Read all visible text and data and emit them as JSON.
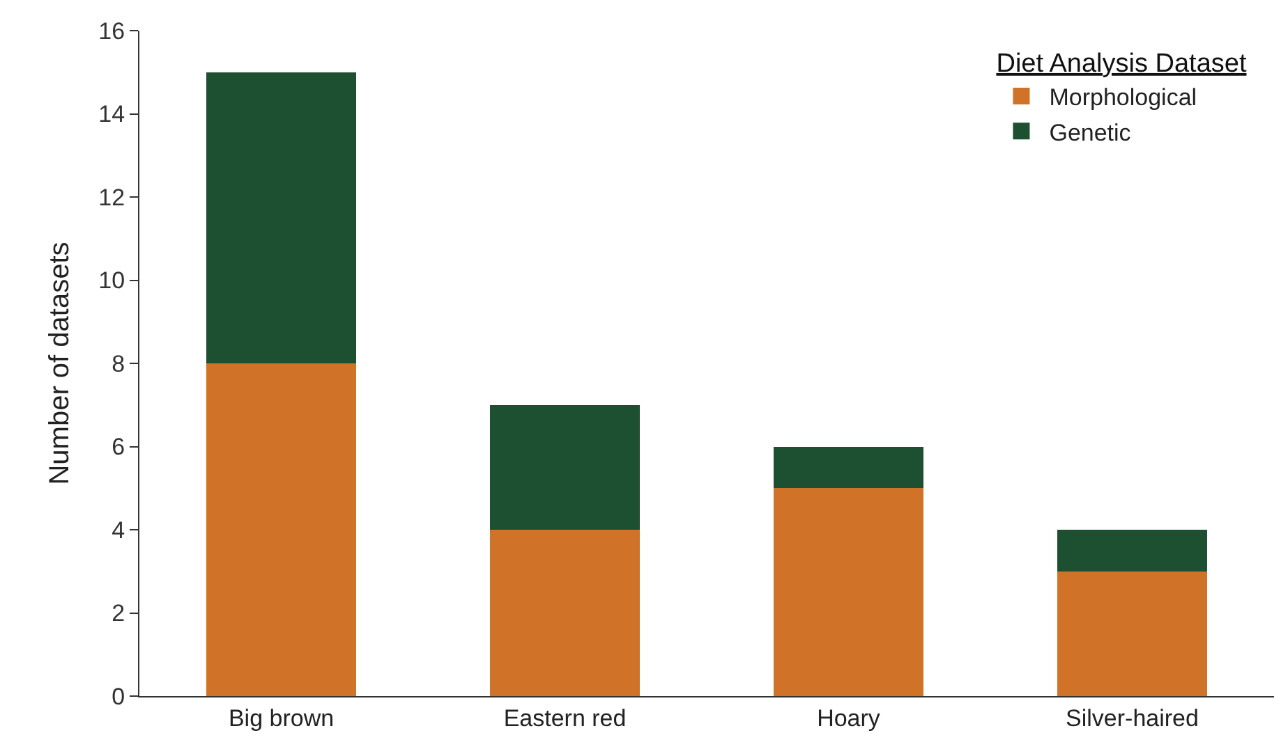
{
  "chart_data": {
    "type": "bar",
    "stacked": true,
    "ylabel": "Number of datasets",
    "legend_title": "Diet Analysis Dataset",
    "legend": "top right",
    "categories": [
      "Big brown",
      "Eastern red",
      "Hoary",
      "Silver-haired"
    ],
    "series": [
      {
        "name": "Morphological",
        "color": "#d07328",
        "values": [
          8,
          4,
          5,
          3
        ]
      },
      {
        "name": "Genetic",
        "color": "#1d4f31",
        "values": [
          7,
          3,
          1,
          1
        ]
      }
    ],
    "ylim": [
      0,
      16
    ],
    "yticks": [
      0,
      2,
      4,
      6,
      8,
      10,
      12,
      14,
      16
    ]
  }
}
